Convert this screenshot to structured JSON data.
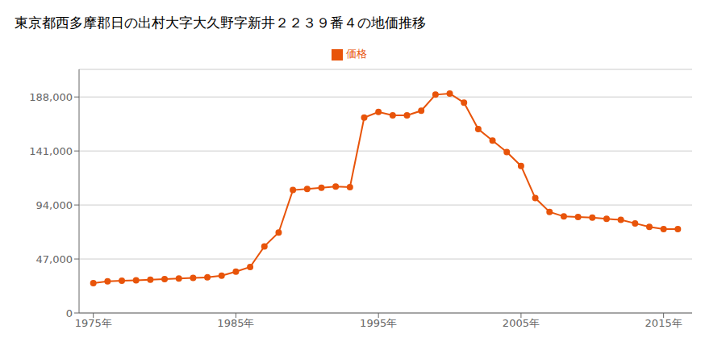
{
  "chart_data": {
    "type": "line",
    "title": "東京都西多摩郡日の出村大字大久野字新井２２３９番４の地価推移",
    "x": [
      1975,
      1976,
      1977,
      1978,
      1979,
      1980,
      1981,
      1982,
      1983,
      1984,
      1985,
      1986,
      1987,
      1988,
      1989,
      1990,
      1991,
      1992,
      1993,
      1994,
      1995,
      1996,
      1997,
      1998,
      1999,
      2000,
      2001,
      2002,
      2003,
      2004,
      2005,
      2006,
      2007,
      2008,
      2009,
      2010,
      2011,
      2012,
      2013,
      2014,
      2015,
      2016
    ],
    "series": [
      {
        "name": "価格",
        "color": "#e8540a",
        "marker": "circle",
        "values": [
          26000,
          27500,
          28000,
          28500,
          29000,
          29500,
          30000,
          30500,
          31000,
          32500,
          36000,
          40000,
          58000,
          70000,
          107000,
          108000,
          109000,
          110000,
          109500,
          170000,
          175000,
          172000,
          172000,
          176000,
          190000,
          191000,
          183000,
          160000,
          150000,
          140000,
          128000,
          100000,
          88000,
          84000,
          83500,
          83000,
          82000,
          81000,
          78000,
          75000,
          73000,
          73000
        ]
      }
    ],
    "xlim": [
      1974,
      2017
    ],
    "xticks": [
      {
        "value": 1975,
        "label": "1975年"
      },
      {
        "value": 1985,
        "label": "1985年"
      },
      {
        "value": 1995,
        "label": "1995年"
      },
      {
        "value": 2005,
        "label": "2005年"
      },
      {
        "value": 2015,
        "label": "2015年"
      }
    ],
    "ylim": [
      0,
      212000
    ],
    "yticks": [
      0,
      {
        "value": 47000,
        "label": "47,000"
      },
      {
        "value": 94000,
        "label": "94,000"
      },
      {
        "value": 141000,
        "label": "141,000"
      },
      {
        "value": 188000,
        "label": "188,000"
      }
    ],
    "grid": true,
    "legend": "top"
  }
}
